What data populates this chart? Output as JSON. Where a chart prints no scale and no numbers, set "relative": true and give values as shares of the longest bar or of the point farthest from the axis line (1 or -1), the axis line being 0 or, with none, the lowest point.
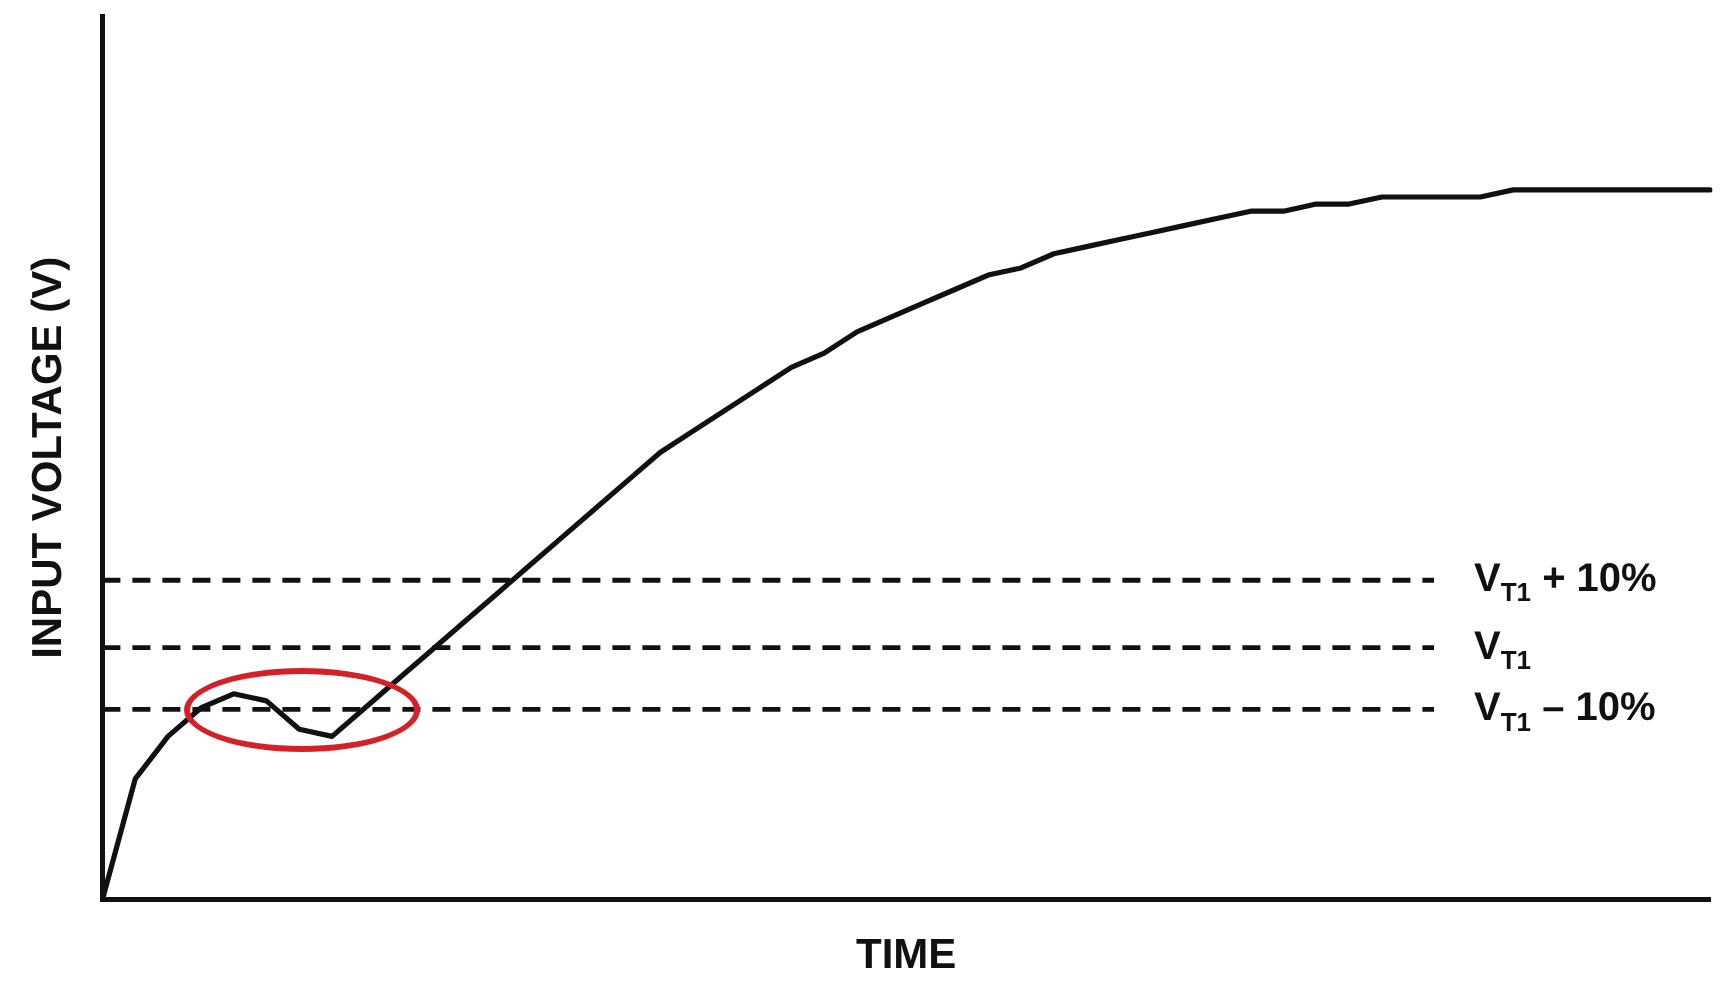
{
  "chart_data": {
    "type": "line",
    "relative": true,
    "xlabel": "TIME",
    "ylabel": "INPUT VOLTAGE (V)",
    "categories": [
      null,
      null,
      null,
      null,
      null,
      null,
      null,
      null,
      null,
      null,
      null,
      null,
      null,
      null,
      null,
      null,
      null,
      null,
      null,
      null,
      null,
      null,
      null,
      null,
      null,
      null,
      null,
      null,
      null,
      null,
      null,
      null,
      null,
      null,
      null,
      null,
      null,
      null,
      null,
      null,
      null,
      null,
      null,
      null,
      null,
      null,
      null,
      null,
      null,
      null
    ],
    "series": [
      {
        "color": "#111111",
        "values": [
          0,
          0.17,
          0.23,
          0.27,
          0.29,
          0.28,
          0.24,
          0.23,
          0.27,
          0.31,
          0.35,
          0.39,
          0.43,
          0.47,
          0.51,
          0.55,
          0.59,
          0.63,
          0.66,
          0.69,
          0.72,
          0.75,
          0.77,
          0.8,
          0.82,
          0.84,
          0.86,
          0.88,
          0.89,
          0.91,
          0.92,
          0.93,
          0.94,
          0.95,
          0.96,
          0.97,
          0.97,
          0.98,
          0.98,
          0.99,
          0.99,
          0.99,
          0.99,
          1,
          1,
          1,
          1,
          1,
          1,
          1
        ]
      }
    ],
    "ref_lines": [
      {
        "axis": "y",
        "value": 0.45,
        "label": "V$_{T1}$ + 10%",
        "color": "#111111",
        "line_style": "dashed"
      },
      {
        "axis": "y",
        "value": 0.355,
        "label": "V$_{T1}$",
        "color": "#111111",
        "line_style": "dashed"
      },
      {
        "axis": "y",
        "value": 0.268,
        "label": "V$_{T1}$ – 10%",
        "color": "#111111",
        "line_style": "dashed"
      }
    ],
    "marker": "none",
    "line_style": "solid",
    "grid": false,
    "legend": false,
    "tick_labels": false
  }
}
